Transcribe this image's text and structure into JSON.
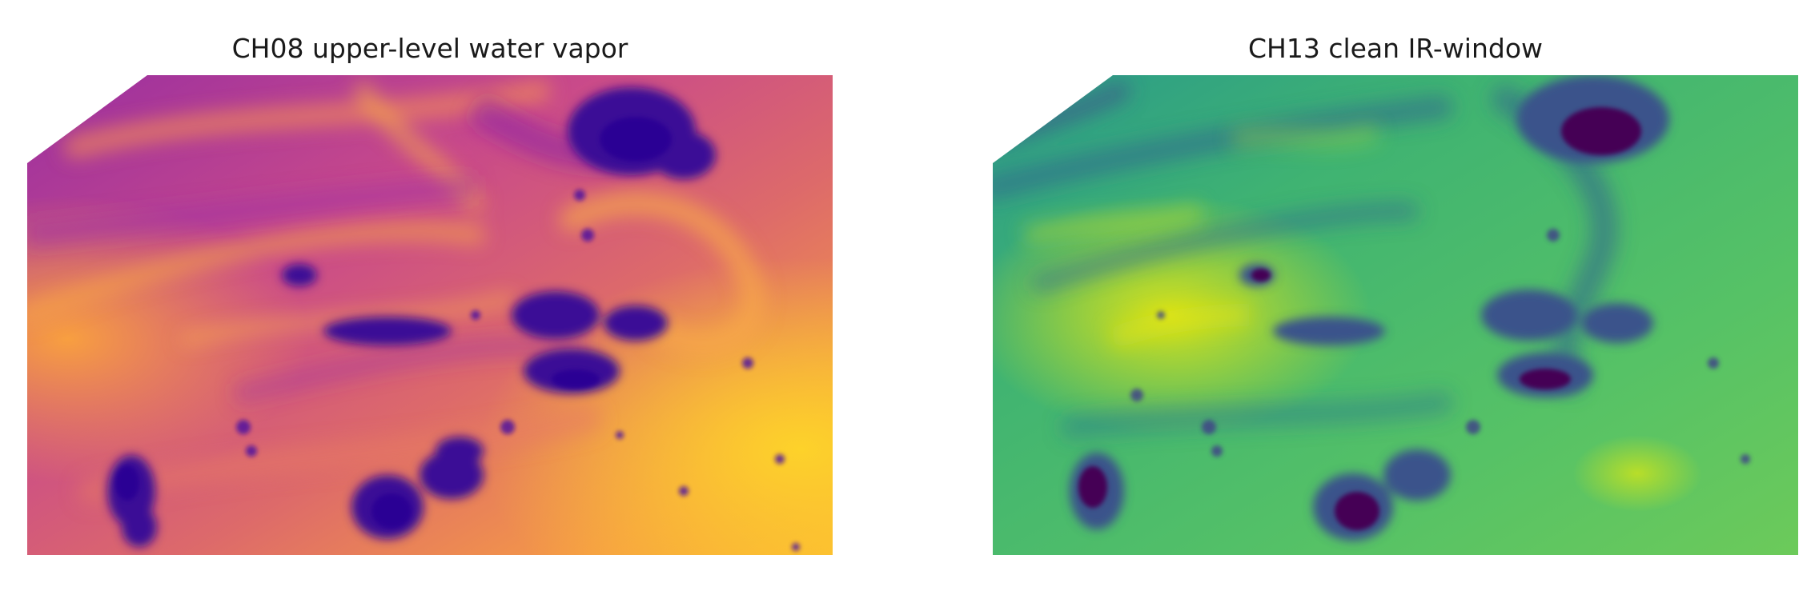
{
  "panels": [
    {
      "title": "CH08 upper-level water vapor",
      "colormap": "plasma",
      "colors": {
        "base_low": "#6a00a8",
        "base_mid": "#cc4778",
        "base_high": "#f89540",
        "base_peak": "#fdc527",
        "cloud_dark": "#3a0a8f",
        "cloud_deep": "#2c0594"
      }
    },
    {
      "title": "CH13 clean IR-window",
      "colormap": "viridis",
      "colors": {
        "base_low": "#26828e",
        "base_mid": "#35b779",
        "base_high": "#6ece58",
        "base_peak": "#d8e219",
        "cloud_dark": "#3b528b",
        "cloud_deep": "#440154"
      }
    }
  ]
}
